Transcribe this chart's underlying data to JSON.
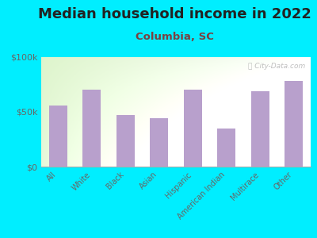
{
  "title": "Median household income in 2022",
  "subtitle": "Columbia, SC",
  "categories": [
    "All",
    "White",
    "Black",
    "Asian",
    "Hispanic",
    "American Indian",
    "Multirace",
    "Other"
  ],
  "values": [
    56000,
    70000,
    47000,
    44000,
    70000,
    35000,
    69000,
    78000
  ],
  "bar_color": "#b8a0cc",
  "background_outer": "#00eeff",
  "title_color": "#222222",
  "subtitle_color": "#7a4040",
  "tick_label_color": "#666666",
  "watermark": "ⓘ City-Data.com",
  "ylim": [
    0,
    100000
  ],
  "yticks": [
    0,
    50000,
    100000
  ],
  "ytick_labels": [
    "$0",
    "$50k",
    "$100k"
  ],
  "title_fontsize": 13,
  "subtitle_fontsize": 9.5
}
